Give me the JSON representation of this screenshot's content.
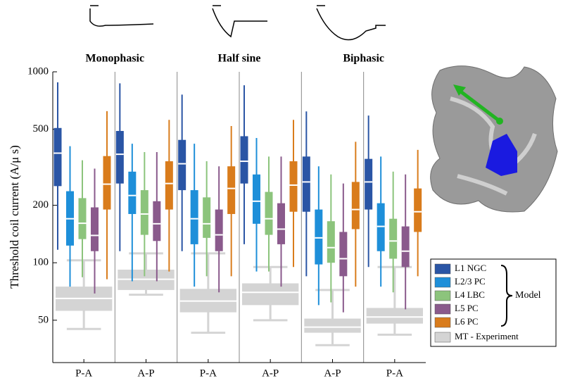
{
  "chart_data": {
    "type": "box",
    "ylabel": "Threshold coil current (A/μ s)",
    "log_scale": true,
    "ylim": [
      30,
      1000
    ],
    "yticks": [
      50,
      100,
      200,
      500,
      1000
    ],
    "categories": [
      "P-A",
      "A-P",
      "P-A",
      "A-P",
      "A-P",
      "P-A"
    ],
    "panel_titles": [
      "Monophasic",
      "Half sine",
      "Biphasic"
    ],
    "legend_group_label": "Model",
    "series": [
      {
        "name": "L1 NGC",
        "color": "#2a55a5",
        "values": [
          [
            117,
            252,
            375,
            508,
            881
          ],
          [
            115,
            260,
            370,
            490,
            870
          ],
          [
            115,
            240,
            330,
            440,
            760
          ],
          [
            125,
            260,
            340,
            460,
            850
          ],
          [
            85,
            185,
            265,
            360,
            620
          ],
          [
            95,
            190,
            265,
            350,
            590
          ]
        ]
      },
      {
        "name": "L2/3 PC",
        "color": "#1e8fd9",
        "values": [
          [
            75,
            123,
            170,
            237,
            408
          ],
          [
            80,
            180,
            225,
            300,
            420
          ],
          [
            75,
            125,
            170,
            240,
            420
          ],
          [
            90,
            160,
            210,
            290,
            450
          ],
          [
            60,
            98,
            135,
            190,
            320
          ],
          [
            75,
            115,
            155,
            205,
            360
          ]
        ]
      },
      {
        "name": "L4 LBC",
        "color": "#8cc47c",
        "values": [
          [
            84,
            133,
            161,
            218,
            344
          ],
          [
            85,
            140,
            180,
            240,
            380
          ],
          [
            85,
            135,
            160,
            220,
            340
          ],
          [
            90,
            140,
            170,
            235,
            360
          ],
          [
            62,
            100,
            120,
            165,
            290
          ],
          [
            70,
            105,
            130,
            170,
            300
          ]
        ]
      },
      {
        "name": "L5 PC",
        "color": "#8a5a8c",
        "values": [
          [
            69,
            115,
            139,
            195,
            311
          ],
          [
            80,
            130,
            160,
            210,
            380
          ],
          [
            70,
            115,
            140,
            190,
            320
          ],
          [
            75,
            125,
            150,
            205,
            360
          ],
          [
            55,
            85,
            105,
            145,
            260
          ],
          [
            57,
            95,
            115,
            155,
            290
          ]
        ]
      },
      {
        "name": "L6 PC",
        "color": "#d97c1c",
        "values": [
          [
            82,
            190,
            258,
            362,
            622
          ],
          [
            90,
            190,
            260,
            340,
            560
          ],
          [
            85,
            180,
            245,
            320,
            520
          ],
          [
            95,
            185,
            255,
            340,
            560
          ],
          [
            75,
            150,
            190,
            265,
            430
          ],
          [
            85,
            145,
            185,
            245,
            390
          ]
        ]
      },
      {
        "name": "MT - Experiment",
        "color": "#d4d4d4",
        "values": [
          [
            45,
            56,
            65,
            75,
            103
          ],
          [
            68,
            72,
            82,
            92,
            112
          ],
          [
            43,
            55,
            63,
            73,
            112
          ],
          [
            50,
            60,
            70,
            78,
            95
          ],
          [
            37,
            43,
            46,
            51,
            72
          ],
          [
            42,
            48,
            52,
            58,
            95
          ]
        ]
      }
    ]
  }
}
